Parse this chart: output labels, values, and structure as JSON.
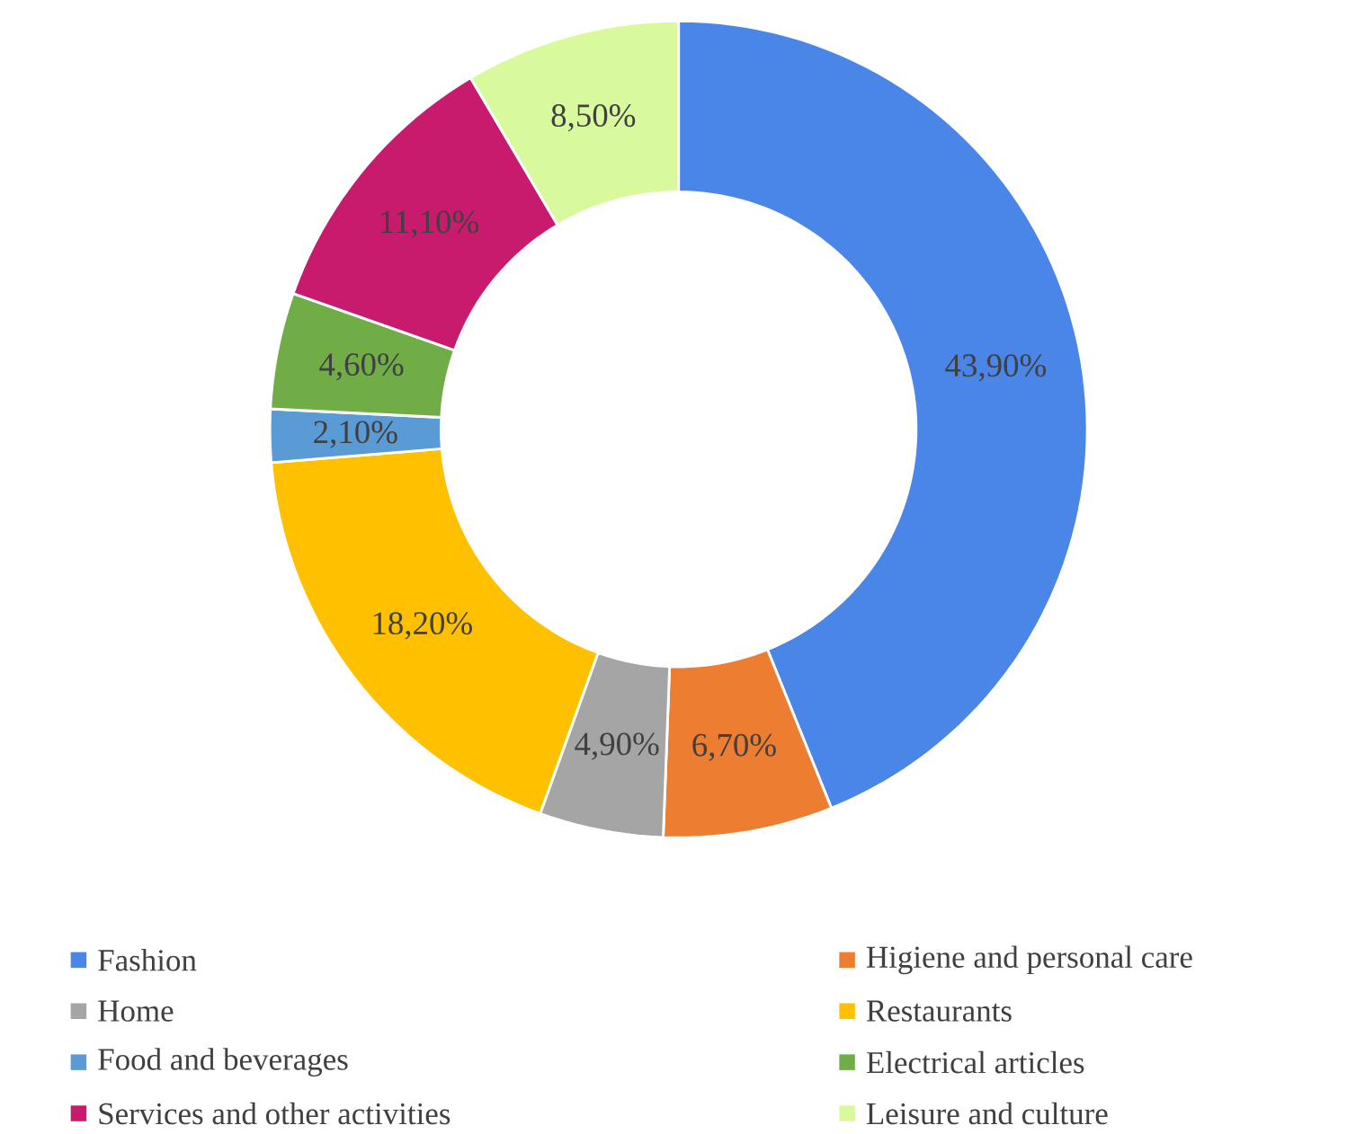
{
  "chart_data": {
    "type": "donut",
    "categories": [
      "Fashion",
      "Higiene and personal care",
      "Home",
      "Restaurants",
      "Food and beverages",
      "Electrical articles",
      "Services and other activities",
      "Leisure and culture"
    ],
    "values": [
      43.9,
      6.7,
      4.9,
      18.2,
      2.1,
      4.6,
      11.1,
      8.5
    ],
    "value_labels": [
      "43,90%",
      "6,70%",
      "4,90%",
      "18,20%",
      "2,10%",
      "4,60%",
      "11,10%",
      "8,50%"
    ],
    "colors": [
      "#4a86e8",
      "#ed7d31",
      "#a5a5a5",
      "#ffc000",
      "#5b9bd5",
      "#70ad47",
      "#c81b6e",
      "#d9f99d"
    ],
    "legend": "bottom"
  }
}
